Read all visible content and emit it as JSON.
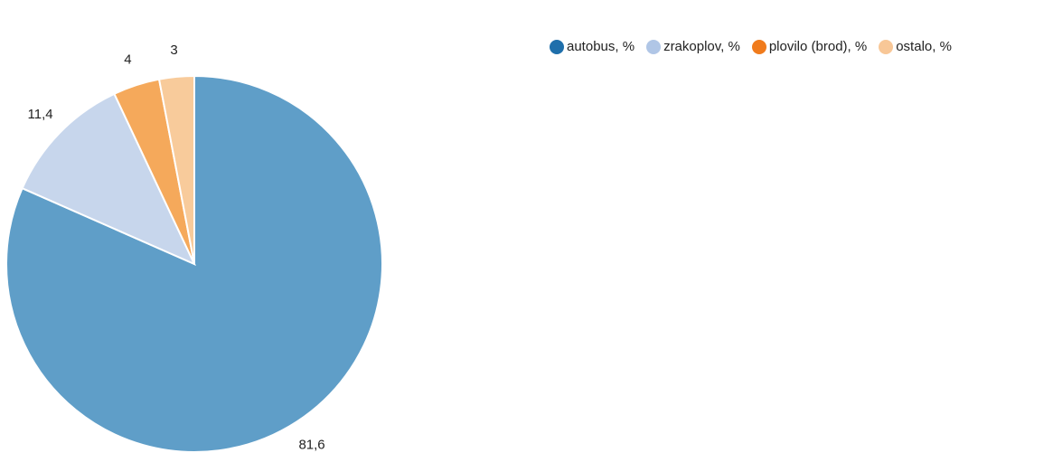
{
  "chart_data": {
    "type": "pie",
    "title": "",
    "legend_position": "top-right",
    "start_angle": "12 o'clock",
    "direction": "clockwise",
    "series": [
      {
        "name": "autobus, %",
        "value": 81.6,
        "label": "81,6",
        "color": "#5f9ec8",
        "legend_color": "#1f6fab"
      },
      {
        "name": "zrakoplov, %",
        "value": 11.4,
        "label": "11,4",
        "color": "#c7d6ec",
        "legend_color": "#b0c6e6"
      },
      {
        "name": "plovilo (brod), %",
        "value": 4,
        "label": "4",
        "color": "#f5a95b",
        "legend_color": "#f07b1c"
      },
      {
        "name": "ostalo, %",
        "value": 3,
        "label": "3",
        "color": "#f8cb9b",
        "legend_color": "#f8c797"
      }
    ]
  }
}
